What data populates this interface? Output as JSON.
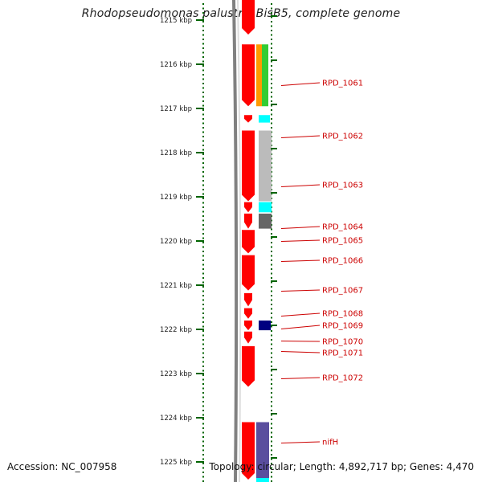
{
  "title": "Rhodopseudomonas palustris BisB5, complete genome",
  "footer": {
    "accession": "Accession: NC_007958",
    "summary": "Topology: circular; Length: 4,892,717 bp; Genes: 4,470"
  },
  "axis": {
    "unit": "kbp",
    "ticks": [
      "1215 kbp",
      "1216 kbp",
      "1217 kbp",
      "1218 kbp",
      "1219 kbp",
      "1220 kbp",
      "1221 kbp",
      "1222 kbp",
      "1223 kbp",
      "1224 kbp",
      "1225 kbp"
    ]
  },
  "genes": [
    {
      "label": "RPD_1061",
      "start_kbp": 1215.55,
      "end_kbp": 1216.95
    },
    {
      "label": "RPD_1062",
      "start_kbp": 1217.15,
      "end_kbp": 1217.32
    },
    {
      "label": "RPD_1063",
      "start_kbp": 1217.5,
      "end_kbp": 1219.1
    },
    {
      "label": "RPD_1064",
      "start_kbp": 1219.12,
      "end_kbp": 1219.35
    },
    {
      "label": "RPD_1065",
      "start_kbp": 1219.38,
      "end_kbp": 1219.72
    },
    {
      "label": "RPD_1066",
      "start_kbp": 1219.75,
      "end_kbp": 1220.28
    },
    {
      "label": "RPD_1067",
      "start_kbp": 1220.32,
      "end_kbp": 1221.12
    },
    {
      "label": "RPD_1068",
      "start_kbp": 1221.18,
      "end_kbp": 1221.48
    },
    {
      "label": "RPD_1069",
      "start_kbp": 1221.52,
      "end_kbp": 1221.76
    },
    {
      "label": "RPD_1070",
      "start_kbp": 1221.8,
      "end_kbp": 1222.02
    },
    {
      "label": "RPD_1071",
      "start_kbp": 1222.05,
      "end_kbp": 1222.32
    },
    {
      "label": "RPD_1072",
      "start_kbp": 1222.38,
      "end_kbp": 1223.3
    },
    {
      "label": "nifH",
      "start_kbp": 1224.1,
      "end_kbp": 1225.4
    }
  ],
  "colors": {
    "gene": "#ff0000",
    "backbone": "#808080",
    "tick": "#006400",
    "label": "#cc0000",
    "cog_orange": "#ff9900",
    "cog_green": "#33cc33",
    "cog_cyan": "#00ffff",
    "cog_lightgray": "#bbbbbb",
    "cog_darkgray": "#666666",
    "cog_navy": "#000080",
    "cog_slate": "#5a4e9e"
  }
}
